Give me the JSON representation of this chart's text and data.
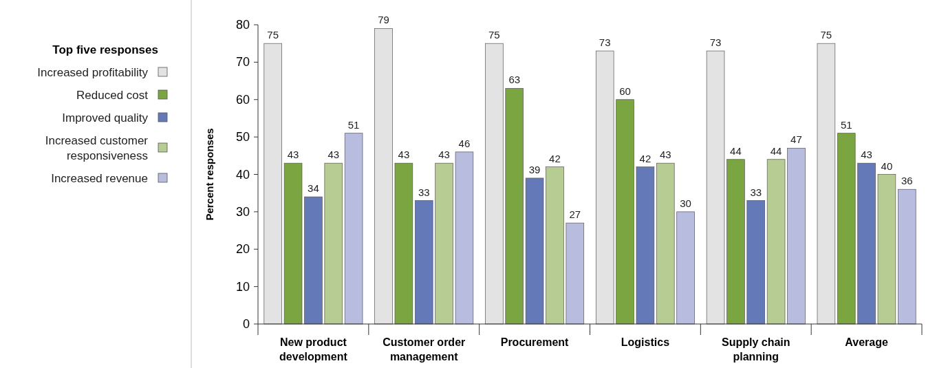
{
  "chart_data": {
    "type": "bar",
    "legend_title": "Top five responses",
    "ylabel": "Percent responses",
    "categories": [
      "New product development",
      "Customer order management",
      "Procurement",
      "Logistics",
      "Supply chain planning",
      "Average"
    ],
    "series": [
      {
        "name": "Increased profitability",
        "color": "#e3e3e3",
        "values": [
          75,
          79,
          75,
          73,
          73,
          75
        ]
      },
      {
        "name": "Reduced cost",
        "color": "#7aa540",
        "values": [
          43,
          43,
          63,
          60,
          44,
          51
        ]
      },
      {
        "name": "Improved quality",
        "color": "#6479b8",
        "values": [
          34,
          33,
          39,
          42,
          33,
          43
        ]
      },
      {
        "name": "Increased customer responsiveness",
        "color": "#b7cc92",
        "values": [
          43,
          43,
          42,
          43,
          44,
          40
        ]
      },
      {
        "name": "Increased revenue",
        "color": "#b8bcde",
        "values": [
          51,
          46,
          27,
          30,
          47,
          36
        ]
      }
    ],
    "ylim": [
      0,
      80
    ],
    "yticks": [
      0,
      10,
      20,
      30,
      40,
      50,
      60,
      70,
      80
    ],
    "data_labels": true,
    "legend": "left",
    "grid": false
  }
}
